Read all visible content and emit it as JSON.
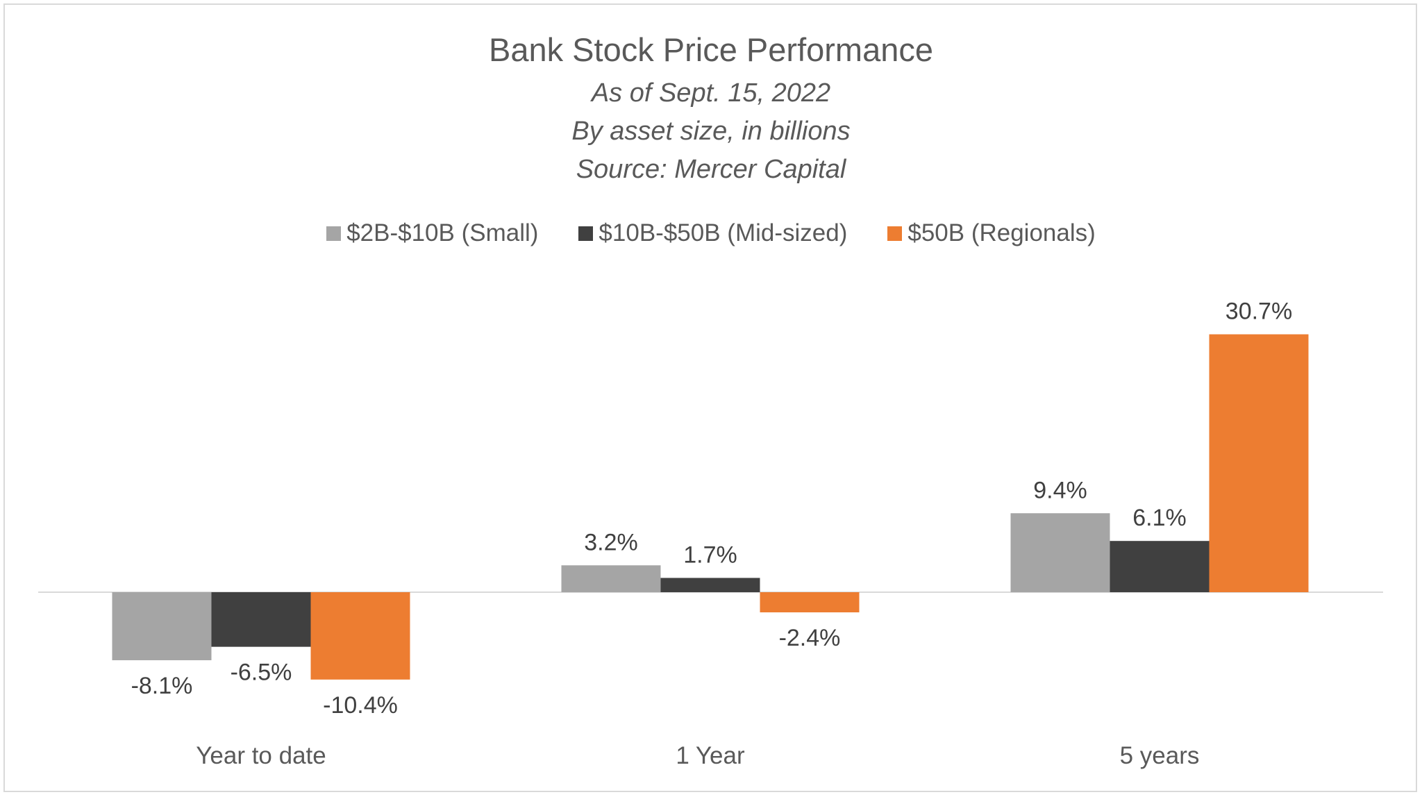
{
  "chart_data": {
    "type": "bar",
    "title": "Bank Stock Price Performance",
    "subtitles": [
      "As of Sept. 15, 2022",
      "By asset size, in billions",
      "Source: Mercer Capital"
    ],
    "categories": [
      "Year to date",
      "1 Year",
      "5 years"
    ],
    "series": [
      {
        "name": "$2B-$10B (Small)",
        "color": "#a5a5a5",
        "values": [
          -8.1,
          3.2,
          9.4
        ],
        "labels": [
          "-8.1%",
          "3.2%",
          "9.4%"
        ]
      },
      {
        "name": "$10B-$50B (Mid-sized)",
        "color": "#404040",
        "values": [
          -6.5,
          1.7,
          6.1
        ],
        "labels": [
          "-6.5%",
          "1.7%",
          "6.1%"
        ]
      },
      {
        "name": "$50B (Regionals)",
        "color": "#ed7d31",
        "values": [
          -10.4,
          -2.4,
          30.7
        ],
        "labels": [
          "-10.4%",
          "-2.4%",
          "30.7%"
        ]
      }
    ],
    "legend_position": "top",
    "grid": false
  }
}
